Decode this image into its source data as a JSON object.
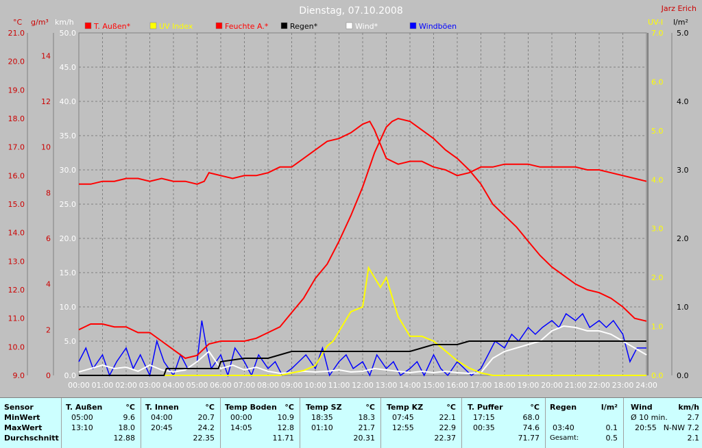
{
  "title": "Dienstag, 07.10.2008",
  "author": "Jarz Erich",
  "colors": {
    "bg": "#c0c0c0",
    "plot": "#c0c0c0",
    "red": "#ff0000",
    "yellow": "#ffff00",
    "black": "#000000",
    "white": "#ffffff",
    "blue": "#0000ff",
    "grid": "#808080",
    "table": "#ccffff",
    "left_axis_text": "#cc0000",
    "right_axis_text": "#ffff00"
  },
  "legend": [
    {
      "label": "T. Außen*",
      "color": "#ff0000"
    },
    {
      "label": "UV Index",
      "color": "#ffff00"
    },
    {
      "label": "Feuchte A.*",
      "color": "#ff0000"
    },
    {
      "label": "Regen*",
      "color": "#000000"
    },
    {
      "label": "Wind*",
      "color": "#ffffff"
    },
    {
      "label": "Windböen",
      "color": "#0000ff"
    }
  ],
  "chart_data": {
    "type": "line",
    "axes": {
      "temp": {
        "unit": "°C",
        "min": 9.0,
        "max": 21.0,
        "ticks": [
          "9.0",
          "10.0",
          "11.0",
          "12.0",
          "13.0",
          "14.0",
          "15.0",
          "16.0",
          "17.0",
          "18.0",
          "19.0",
          "20.0",
          "21.0"
        ]
      },
      "hum": {
        "unit": "g/m³",
        "ticks": [
          "0",
          "2",
          "4",
          "6",
          "8",
          "10",
          "12",
          "14"
        ]
      },
      "wind": {
        "unit": "km/h",
        "min": 0,
        "max": 50,
        "ticks": [
          "0.0",
          "5.0",
          "10.0",
          "15.0",
          "20.0",
          "25.0",
          "30.0",
          "35.0",
          "40.0",
          "45.0",
          "50.0"
        ]
      },
      "uv": {
        "unit": "UV-I",
        "min": 0,
        "max": 7,
        "ticks": [
          "0.0",
          "1.0",
          "2.0",
          "3.0",
          "4.0",
          "5.0",
          "6.0",
          "7.0"
        ]
      },
      "rain": {
        "unit": "l/m²",
        "min": 0,
        "max": 5,
        "ticks": [
          "0.0",
          "1.0",
          "2.0",
          "3.0",
          "4.0",
          "5.0"
        ]
      }
    },
    "x_ticks": [
      "00:00",
      "01:00",
      "02:00",
      "03:00",
      "04:00",
      "05:00",
      "06:00",
      "07:00",
      "08:00",
      "09:00",
      "10:00",
      "11:00",
      "12:00",
      "13:00",
      "14:00",
      "15:00",
      "16:00",
      "17:00",
      "18:00",
      "19:00",
      "20:00",
      "21:00",
      "22:00",
      "23:00",
      "24:00"
    ],
    "grid": true,
    "series": [
      {
        "name": "T. Außen*",
        "axis": "temp",
        "color": "#ff0000",
        "x": [
          0,
          0.5,
          1,
          1.5,
          2,
          2.5,
          3,
          3.5,
          4,
          4.5,
          5,
          5.5,
          6,
          6.5,
          7,
          7.5,
          8,
          8.5,
          9,
          9.5,
          10,
          10.5,
          11,
          11.5,
          12,
          12.5,
          13,
          13.25,
          13.5,
          14,
          14.5,
          15,
          15.5,
          16,
          16.5,
          17,
          17.5,
          18,
          18.5,
          19,
          19.5,
          20,
          20.5,
          21,
          21.5,
          22,
          22.5,
          23,
          23.5,
          24
        ],
        "y": [
          10.6,
          10.8,
          10.8,
          10.7,
          10.7,
          10.5,
          10.5,
          10.2,
          9.9,
          9.6,
          9.7,
          10.1,
          10.2,
          10.2,
          10.2,
          10.3,
          10.5,
          10.7,
          11.2,
          11.7,
          12.4,
          12.9,
          13.7,
          14.6,
          15.6,
          16.8,
          17.7,
          17.9,
          18.0,
          17.9,
          17.6,
          17.3,
          16.9,
          16.6,
          16.2,
          15.7,
          15.0,
          14.6,
          14.2,
          13.7,
          13.2,
          12.8,
          12.5,
          12.2,
          12.0,
          11.9,
          11.7,
          11.4,
          11.0,
          10.9
        ]
      },
      {
        "name": "Feuchte A.*",
        "axis": "temp",
        "color": "#ff0000",
        "x": [
          0,
          0.5,
          1,
          1.5,
          2,
          2.5,
          3,
          3.5,
          4,
          4.5,
          5,
          5.3,
          5.5,
          6,
          6.5,
          7,
          7.5,
          8,
          8.5,
          9,
          9.5,
          10,
          10.5,
          11,
          11.5,
          12,
          12.3,
          12.5,
          12.8,
          13,
          13.5,
          14,
          14.5,
          15,
          15.5,
          16,
          16.5,
          17,
          17.5,
          18,
          18.5,
          19,
          19.5,
          20,
          20.5,
          21,
          21.5,
          22,
          22.5,
          23,
          23.5,
          24
        ],
        "y": [
          15.7,
          15.7,
          15.8,
          15.8,
          15.9,
          15.9,
          15.8,
          15.9,
          15.8,
          15.8,
          15.7,
          15.8,
          16.1,
          16.0,
          15.9,
          16.0,
          16.0,
          16.1,
          16.3,
          16.3,
          16.6,
          16.9,
          17.2,
          17.3,
          17.5,
          17.8,
          17.9,
          17.6,
          17.0,
          16.6,
          16.4,
          16.5,
          16.5,
          16.3,
          16.2,
          16.0,
          16.1,
          16.3,
          16.3,
          16.4,
          16.4,
          16.4,
          16.3,
          16.3,
          16.3,
          16.3,
          16.2,
          16.2,
          16.1,
          16.0,
          15.9,
          15.8
        ]
      },
      {
        "name": "UV Index",
        "axis": "uv",
        "color": "#ffff00",
        "x": [
          0,
          8.5,
          9,
          9.5,
          10,
          10.25,
          10.5,
          10.75,
          11,
          11.25,
          11.5,
          12,
          12.25,
          12.5,
          12.75,
          13,
          13.25,
          13.5,
          14,
          14.5,
          15,
          15.5,
          16,
          16.5,
          17,
          17.5,
          24
        ],
        "y": [
          0,
          0,
          0.05,
          0.1,
          0.2,
          0.4,
          0.6,
          0.7,
          0.9,
          1.1,
          1.3,
          1.4,
          2.2,
          2.0,
          1.8,
          2.0,
          1.6,
          1.2,
          0.8,
          0.8,
          0.7,
          0.5,
          0.3,
          0.15,
          0.05,
          0,
          0
        ]
      },
      {
        "name": "Regen*",
        "axis": "rain",
        "color": "#000000",
        "x": [
          0,
          3.6,
          3.7,
          5.9,
          6.0,
          7.0,
          7.5,
          8.0,
          8.5,
          9.0,
          10.0,
          11.0,
          12.0,
          13.0,
          14.0,
          14.5,
          15.0,
          16.0,
          16.5,
          17.0,
          18.0,
          20.0,
          22.0,
          23.0,
          24.0
        ],
        "y": [
          0,
          0,
          0.1,
          0.1,
          0.2,
          0.25,
          0.25,
          0.25,
          0.3,
          0.35,
          0.35,
          0.35,
          0.35,
          0.35,
          0.35,
          0.4,
          0.45,
          0.45,
          0.5,
          0.5,
          0.5,
          0.5,
          0.5,
          0.5,
          0.5
        ]
      },
      {
        "name": "Wind*",
        "axis": "wind",
        "color": "#ffffff",
        "x": [
          0,
          0.5,
          1,
          1.5,
          2,
          2.5,
          3,
          3.5,
          4,
          4.5,
          5,
          5.5,
          6,
          6.5,
          7,
          7.5,
          8,
          8.5,
          9,
          9.5,
          10,
          10.5,
          11,
          11.5,
          12,
          12.5,
          13,
          13.5,
          14,
          14.5,
          15,
          15.5,
          16,
          16.5,
          17,
          17.5,
          18,
          18.5,
          19,
          19.5,
          20,
          20.5,
          21,
          21.5,
          22,
          22.5,
          23,
          23.5,
          24
        ],
        "y": [
          0.5,
          1.0,
          1.5,
          1.0,
          1.2,
          0.6,
          1.5,
          0.8,
          0.5,
          0.8,
          2.0,
          3.5,
          1.0,
          1.5,
          0.8,
          1.2,
          0.6,
          0.3,
          0.4,
          0.6,
          0.5,
          0.6,
          0.8,
          0.5,
          0.6,
          1.0,
          0.8,
          0.6,
          0.4,
          0.6,
          0.4,
          0.6,
          0.4,
          0.3,
          0.4,
          2.5,
          3.5,
          4.0,
          4.5,
          5.0,
          6.5,
          7.2,
          7.0,
          6.5,
          6.5,
          6.0,
          5.0,
          4.0,
          3.0
        ]
      },
      {
        "name": "Windböen",
        "axis": "wind",
        "color": "#0000ff",
        "x": [
          0,
          0.3,
          0.6,
          1,
          1.3,
          1.6,
          2,
          2.3,
          2.6,
          3,
          3.3,
          3.6,
          4,
          4.3,
          4.6,
          5,
          5.2,
          5.4,
          5.6,
          6,
          6.3,
          6.6,
          7,
          7.3,
          7.6,
          8,
          8.3,
          8.6,
          9,
          9.3,
          9.6,
          10,
          10.3,
          10.6,
          11,
          11.3,
          11.6,
          12,
          12.3,
          12.6,
          13,
          13.3,
          13.6,
          14,
          14.3,
          14.6,
          15,
          15.3,
          15.6,
          16,
          16.3,
          16.6,
          17,
          17.3,
          17.6,
          18,
          18.3,
          18.6,
          19,
          19.3,
          19.6,
          20,
          20.3,
          20.6,
          21,
          21.3,
          21.6,
          22,
          22.3,
          22.6,
          23,
          23.3,
          23.6,
          24
        ],
        "y": [
          2,
          4,
          1,
          3,
          0,
          2,
          4,
          1,
          3,
          0,
          5,
          2,
          0,
          3,
          1,
          2,
          8,
          4,
          1,
          3,
          0,
          4,
          2,
          0,
          3,
          1,
          2,
          0,
          1,
          2,
          3,
          1,
          4,
          0,
          2,
          3,
          1,
          2,
          0,
          3,
          1,
          2,
          0,
          1,
          2,
          0,
          3,
          1,
          0,
          2,
          1,
          0,
          1,
          3,
          5,
          4,
          6,
          5,
          7,
          6,
          7,
          8,
          7,
          9,
          8,
          9,
          7,
          8,
          7,
          8,
          6,
          2,
          4,
          4
        ]
      }
    ]
  },
  "table": {
    "row_labels": {
      "header": "Sensor",
      "min": "MinWert",
      "max": "MaxWert",
      "avg": "Durchschnitt"
    },
    "cols": [
      {
        "name": "T. Außen",
        "unit": "°C",
        "min_time": "05:00",
        "min_val": "9.6",
        "max_time": "13:10",
        "max_val": "18.0",
        "avg": "12.88"
      },
      {
        "name": "T. Innen",
        "unit": "°C",
        "min_time": "04:00",
        "min_val": "20.7",
        "max_time": "20:45",
        "max_val": "24.2",
        "avg": "22.35"
      },
      {
        "name": "Temp Boden",
        "unit": "°C",
        "min_time": "00:00",
        "min_val": "10.9",
        "max_time": "14:05",
        "max_val": "12.8",
        "avg": "11.71"
      },
      {
        "name": "Temp SZ",
        "unit": "°C",
        "min_time": "18:35",
        "min_val": "18.3",
        "max_time": "01:10",
        "max_val": "21.7",
        "avg": "20.31"
      },
      {
        "name": "Temp KZ",
        "unit": "°C",
        "min_time": "07:45",
        "min_val": "22.1",
        "max_time": "12:55",
        "max_val": "22.9",
        "avg": "22.37"
      },
      {
        "name": "T. Puffer",
        "unit": "°C",
        "min_time": "17:15",
        "min_val": "68.0",
        "max_time": "00:35",
        "max_val": "74.6",
        "avg": "71.77"
      }
    ],
    "regen": {
      "name": "Regen",
      "unit": "l/m²",
      "max_time": "03:40",
      "max_val": "0.1",
      "gesamt_label": "Gesamt:",
      "gesamt_val": "0.5"
    },
    "wind": {
      "name": "Wind",
      "unit": "km/h",
      "min_label": "Ø 10 min.",
      "min_val": "2.7",
      "max_time": "20:55",
      "max_val": "N-NW 7.2",
      "avg": "2.1"
    }
  }
}
